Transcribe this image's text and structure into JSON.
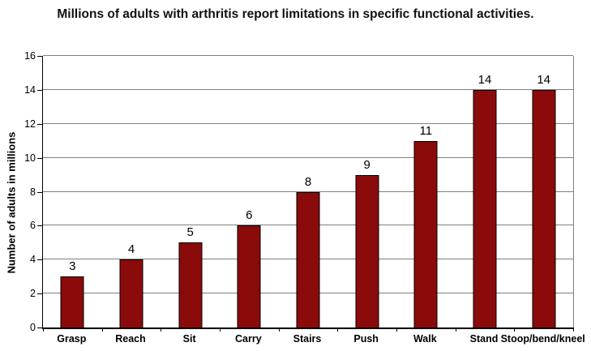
{
  "chart_data": {
    "type": "bar",
    "title": "Millions of adults with arthritis report limitations in specific functional activities.",
    "categories": [
      "Grasp",
      "Reach",
      "Sit",
      "Carry",
      "Stairs",
      "Push",
      "Walk",
      "Stand",
      "Stoop/bend/kneel"
    ],
    "values": [
      3,
      4,
      5,
      6,
      8,
      9,
      11,
      14,
      14
    ],
    "data_labels": [
      "3",
      "4",
      "5",
      "6",
      "8",
      "9",
      "11",
      "14",
      "14"
    ],
    "xlabel": "",
    "ylabel": "Number of adults in millions",
    "ylim": [
      0,
      16
    ],
    "ytick_step": 2,
    "ytick_labels": [
      "0",
      "2",
      "4",
      "6",
      "8",
      "10",
      "12",
      "14",
      "16"
    ],
    "grid": true,
    "legend": "none",
    "colors": {
      "bar_fill": "#8B0B0B",
      "bar_border": "#000000",
      "gridline": "#808080",
      "axis": "#000000",
      "text": "#000000",
      "background": "#FFFFFF"
    }
  }
}
